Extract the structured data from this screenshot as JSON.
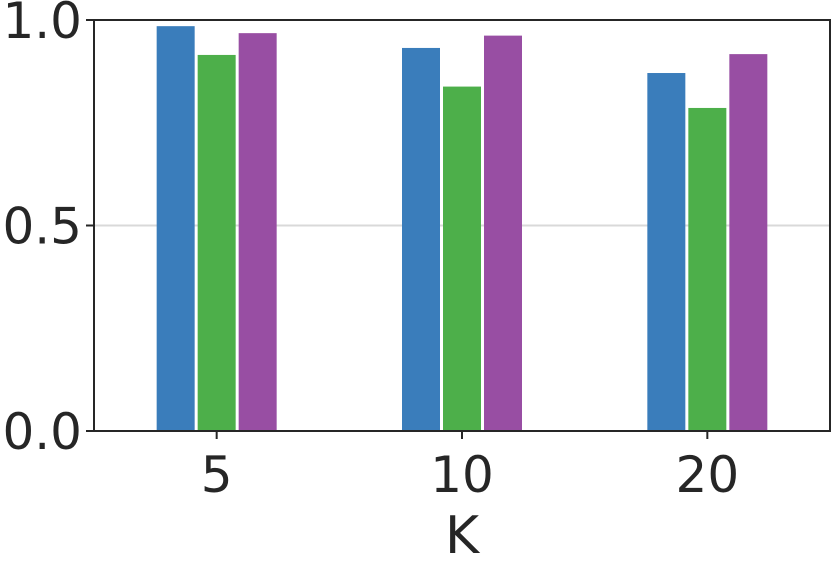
{
  "chart_data": {
    "type": "bar",
    "title": "",
    "xlabel": "K",
    "ylabel": "",
    "categories": [
      "5",
      "10",
      "20"
    ],
    "series": [
      {
        "values": [
          0.985,
          0.932,
          0.871
        ],
        "color": "#3a7dbb"
      },
      {
        "values": [
          0.915,
          0.838,
          0.786
        ],
        "color": "#4daf4a"
      },
      {
        "values": [
          0.968,
          0.962,
          0.917
        ],
        "color": "#984ea3"
      }
    ],
    "ylim": [
      0.0,
      1.0
    ],
    "yticks": [
      0.0,
      0.5,
      1.0
    ],
    "ytick_labels": [
      "0.0",
      "0.5",
      "1.0"
    ],
    "grid": "horizontal",
    "legend": "none"
  }
}
